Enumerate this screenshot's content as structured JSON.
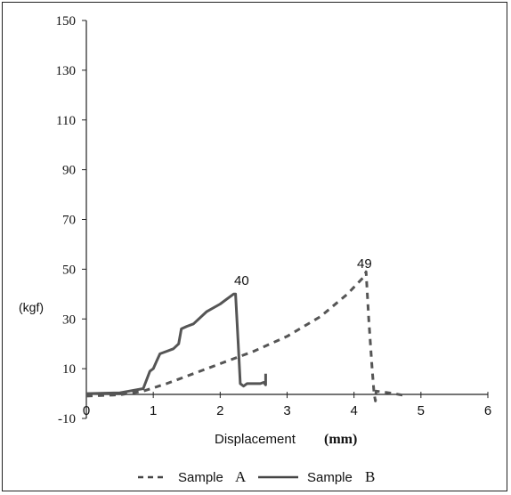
{
  "chart_data": {
    "type": "line",
    "ylabel": "(kgf)",
    "xlabel": "Displacement",
    "xlabel_unit": "(mm)",
    "xlim": [
      0,
      6
    ],
    "ylim": [
      -10,
      150
    ],
    "x_ticks": [
      "0",
      "1",
      "2",
      "3",
      "4",
      "5",
      "6"
    ],
    "y_ticks": [
      "150",
      "130",
      "110",
      "90",
      "70",
      "50",
      "30",
      "10",
      "-10"
    ],
    "y_tick_values": [
      150,
      130,
      110,
      90,
      70,
      50,
      30,
      10,
      -10
    ],
    "series": [
      {
        "name": "Sample A",
        "style": "dashed",
        "color": "#555555",
        "points": [
          [
            0,
            -1
          ],
          [
            0.5,
            -0.5
          ],
          [
            0.85,
            1
          ],
          [
            1.2,
            4
          ],
          [
            1.6,
            8
          ],
          [
            2.0,
            12
          ],
          [
            2.5,
            17
          ],
          [
            3.0,
            23
          ],
          [
            3.5,
            31
          ],
          [
            3.9,
            40
          ],
          [
            4.15,
            47
          ],
          [
            4.18,
            49
          ],
          [
            4.22,
            30
          ],
          [
            4.27,
            10
          ],
          [
            4.3,
            0
          ],
          [
            4.32,
            -3
          ],
          [
            4.33,
            1
          ],
          [
            4.6,
            0
          ],
          [
            4.8,
            -1
          ]
        ]
      },
      {
        "name": "Sample B",
        "style": "solid",
        "color": "#555555",
        "points": [
          [
            0,
            0
          ],
          [
            0.5,
            0.3
          ],
          [
            0.85,
            2
          ],
          [
            0.95,
            9
          ],
          [
            1.0,
            10
          ],
          [
            1.05,
            13
          ],
          [
            1.1,
            16
          ],
          [
            1.2,
            17
          ],
          [
            1.3,
            18
          ],
          [
            1.38,
            20
          ],
          [
            1.42,
            26
          ],
          [
            1.5,
            27
          ],
          [
            1.6,
            28
          ],
          [
            1.8,
            33
          ],
          [
            2.0,
            36
          ],
          [
            2.2,
            40
          ],
          [
            2.23,
            40
          ],
          [
            2.27,
            20
          ],
          [
            2.3,
            4
          ],
          [
            2.35,
            3
          ],
          [
            2.4,
            4
          ],
          [
            2.6,
            4
          ],
          [
            2.65,
            4.5
          ],
          [
            2.68,
            3.5
          ],
          [
            2.68,
            8
          ]
        ]
      }
    ],
    "annotations": [
      {
        "text": "40",
        "x": 2.25,
        "y": 40
      },
      {
        "text": "49",
        "x": 4.18,
        "y": 49
      }
    ],
    "legend": {
      "placement": "bottom",
      "items": [
        {
          "prefix": "Sample",
          "suffix": "A"
        },
        {
          "prefix": "Sample",
          "suffix": "B"
        }
      ]
    }
  }
}
